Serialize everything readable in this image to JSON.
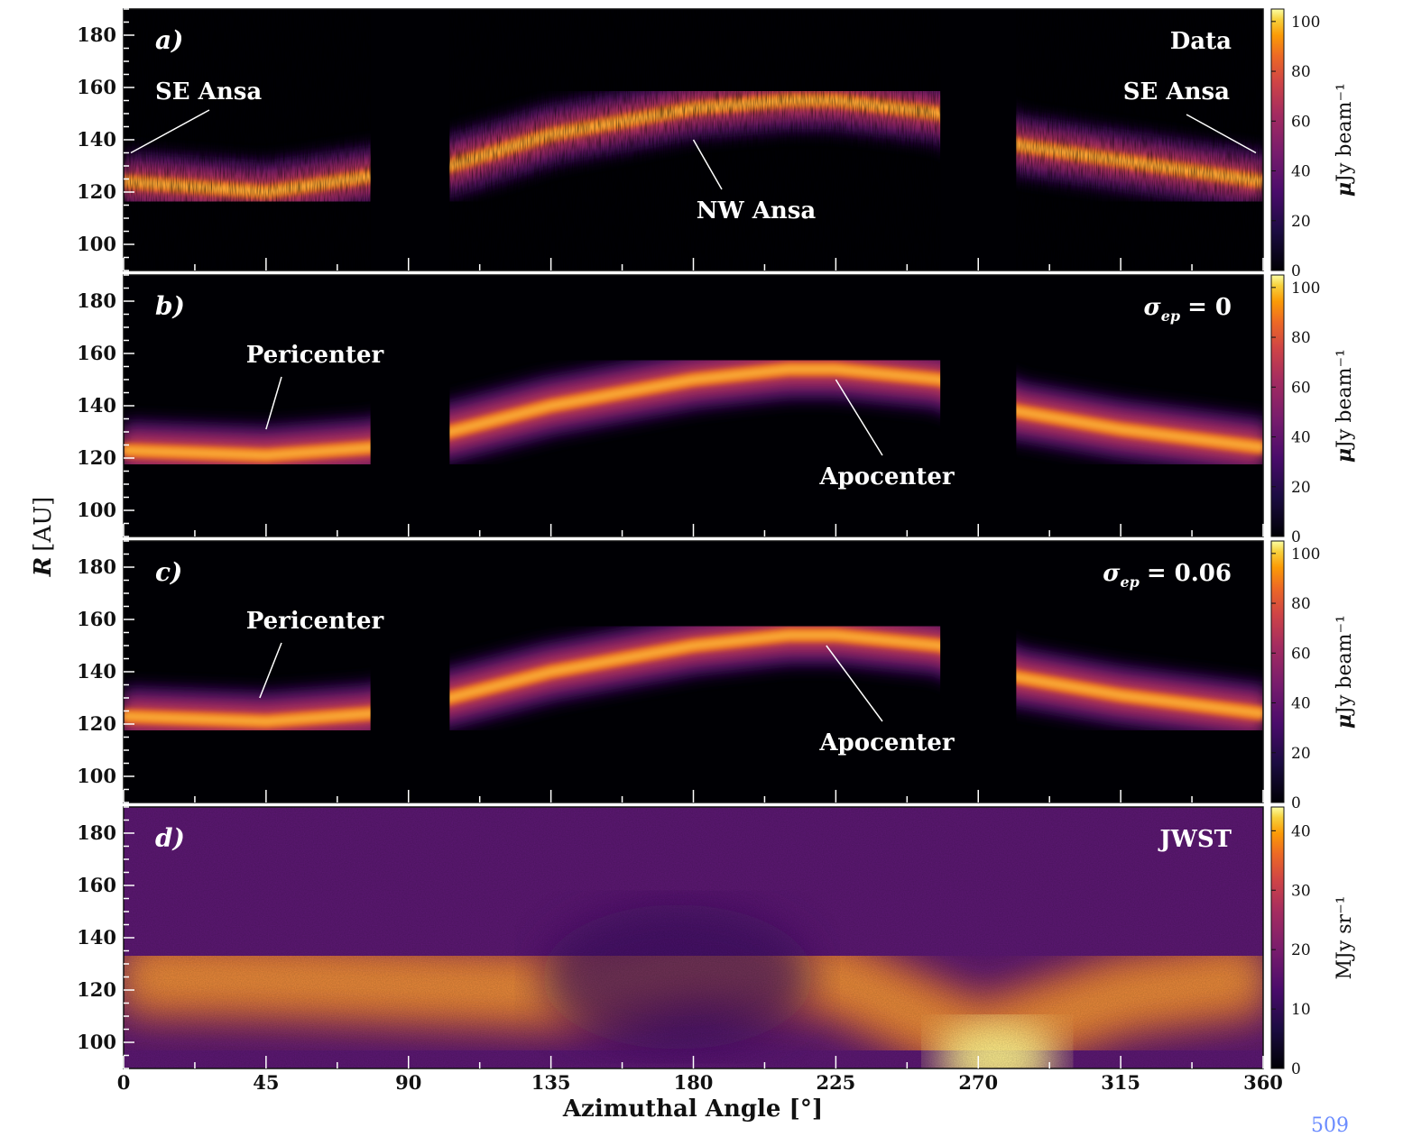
{
  "chart_data": {
    "type": "heatmap",
    "xlabel": "Azimuthal Angle [°]",
    "ylabel": "R [AU]",
    "xlim": [
      0,
      360
    ],
    "ylim": [
      90,
      190
    ],
    "xticks": [
      "0",
      "45",
      "90",
      "135",
      "180",
      "225",
      "270",
      "315",
      "360"
    ],
    "yticks": [
      "100",
      "120",
      "140",
      "160",
      "180"
    ],
    "colormap": "inferno",
    "panels": [
      {
        "letter": "a)",
        "title": "Data",
        "colorbar_label": "μJy beam⁻¹",
        "colorbar_ticks": [
          "0",
          "20",
          "40",
          "60",
          "80",
          "100"
        ],
        "colorbar_range": [
          0,
          105
        ],
        "masked_azimuth_ranges": [
          [
            78,
            103
          ],
          [
            258,
            282
          ]
        ],
        "ridge": {
          "azimuth": [
            0,
            45,
            78,
            103,
            135,
            180,
            210,
            225,
            258,
            282,
            315,
            360
          ],
          "radius": [
            124,
            120,
            126,
            130,
            142,
            152,
            155,
            155,
            150,
            138,
            132,
            124
          ]
        },
        "annotations": [
          {
            "text": "SE Ansa",
            "azimuth": 0,
            "radius": 135
          },
          {
            "text": "NW Ansa",
            "azimuth": 180,
            "radius": 140
          },
          {
            "text": "SE Ansa",
            "azimuth": 360,
            "radius": 135
          }
        ]
      },
      {
        "letter": "b)",
        "title": "σ_ep = 0",
        "colorbar_label": "μJy beam⁻¹",
        "colorbar_ticks": [
          "0",
          "20",
          "40",
          "60",
          "80",
          "100"
        ],
        "colorbar_range": [
          0,
          105
        ],
        "masked_azimuth_ranges": [
          [
            78,
            103
          ],
          [
            258,
            282
          ]
        ],
        "ridge": {
          "azimuth": [
            0,
            45,
            78,
            103,
            135,
            180,
            210,
            225,
            258,
            282,
            315,
            360
          ],
          "radius": [
            123,
            121,
            124,
            130,
            140,
            150,
            154,
            154,
            150,
            138,
            131,
            124
          ]
        },
        "annotations": [
          {
            "text": "Pericenter",
            "azimuth": 45,
            "radius": 131
          },
          {
            "text": "Apocenter",
            "azimuth": 225,
            "radius": 150
          }
        ]
      },
      {
        "letter": "c)",
        "title": "σ_ep = 0.06",
        "colorbar_label": "μJy beam⁻¹",
        "colorbar_ticks": [
          "0",
          "20",
          "40",
          "60",
          "80",
          "100"
        ],
        "colorbar_range": [
          0,
          105
        ],
        "masked_azimuth_ranges": [
          [
            78,
            103
          ],
          [
            258,
            282
          ]
        ],
        "ridge": {
          "azimuth": [
            0,
            45,
            78,
            103,
            135,
            180,
            210,
            225,
            258,
            282,
            315,
            360
          ],
          "radius": [
            123,
            121,
            124,
            130,
            140,
            150,
            154,
            154,
            150,
            138,
            131,
            124
          ]
        },
        "annotations": [
          {
            "text": "Pericenter",
            "azimuth": 43,
            "radius": 130
          },
          {
            "text": "Apocenter",
            "azimuth": 222,
            "radius": 150
          }
        ]
      },
      {
        "letter": "d)",
        "title": "JWST",
        "colorbar_label": "MJy sr⁻¹",
        "colorbar_ticks": [
          "0",
          "10",
          "20",
          "30",
          "40"
        ],
        "colorbar_range": [
          0,
          44
        ],
        "masked_azimuth_ranges": [],
        "ridge": {
          "azimuth": [
            0,
            45,
            90,
            135,
            180,
            225,
            270,
            315,
            360
          ],
          "radius": [
            125,
            124,
            122,
            120,
            130,
            125,
            100,
            118,
            125
          ]
        },
        "annotations": []
      }
    ]
  },
  "corner_text": "509"
}
